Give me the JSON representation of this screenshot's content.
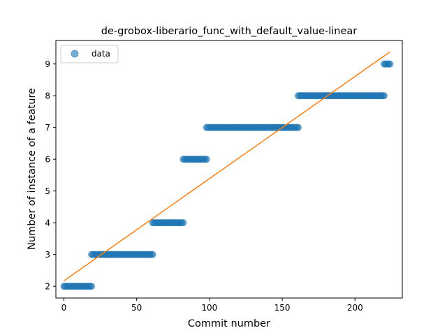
{
  "chart_data": {
    "type": "scatter",
    "title": "de-grobox-liberario_func_with_default_value-linear",
    "xlabel": "Commit number",
    "ylabel": "Number of instance of a feature",
    "xlim": [
      -5.5,
      232.5
    ],
    "ylim": [
      1.63,
      9.74
    ],
    "xticks": [
      0,
      50,
      100,
      150,
      200
    ],
    "yticks": [
      2,
      3,
      4,
      5,
      6,
      7,
      8,
      9
    ],
    "grid": false,
    "legend": {
      "position": "top-left",
      "entries": [
        "data"
      ]
    },
    "series": [
      {
        "name": "data",
        "kind": "points",
        "color": "#1f77b4",
        "segments": [
          {
            "x_start": 0,
            "x_end": 19,
            "y": 2
          },
          {
            "x_start": 19,
            "x_end": 61,
            "y": 3
          },
          {
            "x_start": 61,
            "x_end": 82,
            "y": 4
          },
          {
            "x_start": 82,
            "x_end": 98,
            "y": 6
          },
          {
            "x_start": 98,
            "x_end": 161,
            "y": 7
          },
          {
            "x_start": 161,
            "x_end": 220,
            "y": 8
          },
          {
            "x_start": 220,
            "x_end": 224,
            "y": 9
          }
        ]
      },
      {
        "kind": "fit-line",
        "color": "#ff7f0e",
        "x": [
          0,
          224
        ],
        "y": [
          2.17,
          9.38
        ]
      }
    ]
  }
}
